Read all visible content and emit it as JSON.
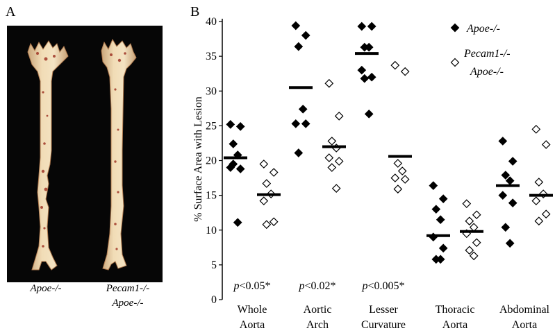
{
  "panels": {
    "a_label": "A",
    "b_label": "B"
  },
  "photo": {
    "captions": [
      {
        "lines": [
          "Apoe-/-"
        ]
      },
      {
        "lines": [
          "Pecam1-/-",
          "Apoe-/-"
        ]
      }
    ]
  },
  "chart_data": {
    "type": "scatter",
    "title": "",
    "xlabel": "",
    "ylabel": "% Surface Area with Lesion",
    "ylim": [
      0,
      40
    ],
    "yticks": [
      0,
      5,
      10,
      15,
      20,
      25,
      30,
      35,
      40
    ],
    "grid": false,
    "legend_position": "top-right",
    "categories": [
      {
        "label": [
          "Whole",
          "Aorta"
        ]
      },
      {
        "label": [
          "Aortic",
          "Arch"
        ]
      },
      {
        "label": [
          "Lesser",
          "Curvature"
        ]
      },
      {
        "label": [
          "Thoracic",
          "Aorta"
        ]
      },
      {
        "label": [
          "Abdominal",
          "Aorta"
        ]
      }
    ],
    "series": [
      {
        "name": "Apoe-/-",
        "marker": "filled-diamond",
        "color": "#000000",
        "points": [
          [
            25.2,
            24.9,
            22.4,
            20.8,
            19.0,
            18.8,
            19.5,
            11.1
          ],
          [
            39.4,
            38.0,
            36.4,
            27.4,
            25.3,
            25.3,
            21.1
          ],
          [
            39.3,
            39.3,
            36.3,
            36.3,
            33.0,
            32.0,
            31.8,
            26.7
          ],
          [
            16.4,
            14.5,
            13.0,
            11.5,
            9.0,
            7.4,
            5.8,
            5.8
          ],
          [
            22.8,
            19.9,
            17.9,
            17.1,
            15.0,
            13.9,
            10.4,
            8.1
          ]
        ],
        "means": [
          20.4,
          30.5,
          35.4,
          9.2,
          16.4
        ]
      },
      {
        "name": "Pecam1-/- Apoe-/-",
        "name_lines": [
          "Pecam1-/-",
          "Apoe-/-"
        ],
        "marker": "open-diamond",
        "color": "#000000",
        "points": [
          [
            19.5,
            18.3,
            16.7,
            15.2,
            14.2,
            11.2,
            10.8
          ],
          [
            31.1,
            26.4,
            22.8,
            21.8,
            20.4,
            19.9,
            19.0,
            16.0
          ],
          [
            33.7,
            32.8,
            19.6,
            18.5,
            17.5,
            17.3,
            15.9
          ],
          [
            13.8,
            12.2,
            11.3,
            10.4,
            9.5,
            8.2,
            7.1,
            6.3
          ],
          [
            24.5,
            22.3,
            16.9,
            15.2,
            14.2,
            12.3,
            11.3
          ]
        ],
        "means": [
          15.1,
          22.0,
          20.6,
          9.8,
          15.0
        ]
      }
    ],
    "annotations": [
      {
        "category": 0,
        "italic": "p",
        "text": "<0.05*"
      },
      {
        "category": 1,
        "italic": "p",
        "text": "<0.02*"
      },
      {
        "category": 2,
        "italic": "p",
        "text": "<0.005*"
      }
    ]
  }
}
